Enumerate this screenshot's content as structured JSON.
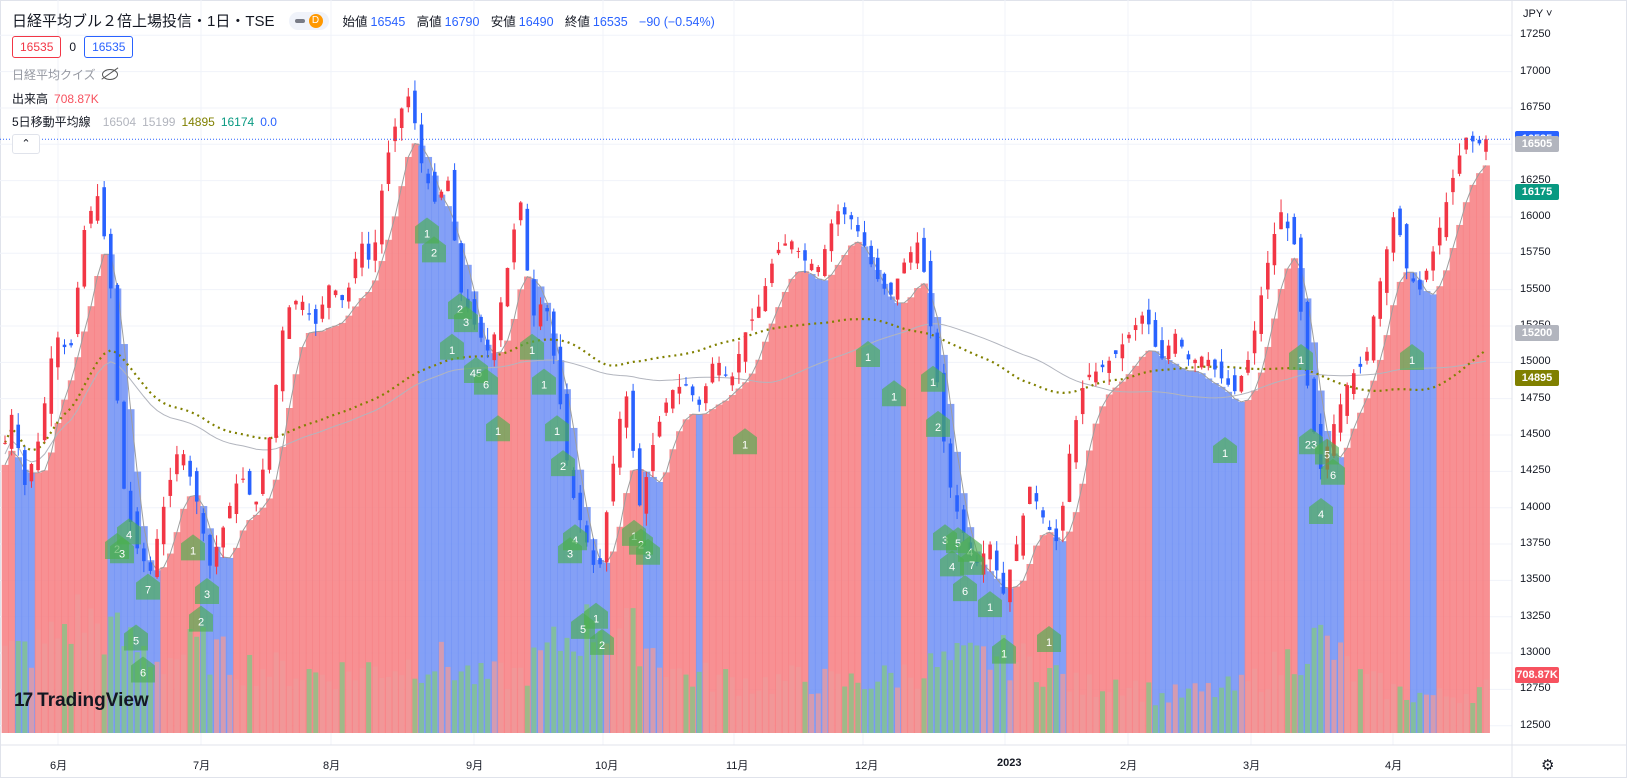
{
  "header": {
    "title": "日経平均ブル２倍上場投信・1日・TSE",
    "pill_letter": "D",
    "open_label": "始値",
    "open": "16545",
    "high_label": "高値",
    "high": "16790",
    "low_label": "安値",
    "low": "16490",
    "close_label": "終値",
    "close": "16535",
    "change": "−90 (−0.54%)"
  },
  "boxes": {
    "sell": "16535",
    "spread": "0",
    "buy": "16535"
  },
  "indicators": {
    "quiz": "日経平均クイズ",
    "volume_label": "出来高",
    "volume_value": "708.87K",
    "ma_label": "5日移動平均線",
    "ma_values": [
      {
        "text": "16504",
        "color": "#b2b5be"
      },
      {
        "text": "15199",
        "color": "#b2b5be"
      },
      {
        "text": "14895",
        "color": "#808000"
      },
      {
        "text": "16174",
        "color": "#089981"
      },
      {
        "text": "0.0",
        "color": "#2962ff"
      }
    ]
  },
  "currency": "JPY",
  "price_axis": [
    "17250",
    "17000",
    "16750",
    "16500",
    "16250",
    "16000",
    "15750",
    "15500",
    "15250",
    "15000",
    "14750",
    "14500",
    "14250",
    "14000",
    "13750",
    "13500",
    "13250",
    "13000",
    "12750",
    "12500"
  ],
  "price_tags": [
    {
      "text": "16535",
      "price": 16535,
      "color": "#2962ff"
    },
    {
      "text": "16505",
      "price": 16505,
      "color": "#b2b5be"
    },
    {
      "text": "16175",
      "price": 16175,
      "color": "#089981"
    },
    {
      "text": "15200",
      "price": 15200,
      "color": "#b2b5be"
    },
    {
      "text": "14895",
      "price": 14895,
      "color": "#808000"
    },
    {
      "text": "708.87K",
      "price": 12850,
      "color": "#f7525f"
    }
  ],
  "time_axis": [
    {
      "label": "6月",
      "x": 58,
      "year": false
    },
    {
      "label": "7月",
      "x": 201,
      "year": false
    },
    {
      "label": "8月",
      "x": 331,
      "year": false
    },
    {
      "label": "9月",
      "x": 474,
      "year": false
    },
    {
      "label": "10月",
      "x": 603,
      "year": false
    },
    {
      "label": "11月",
      "x": 734,
      "year": false
    },
    {
      "label": "12月",
      "x": 863,
      "year": false
    },
    {
      "label": "2023",
      "x": 1005,
      "year": true
    },
    {
      "label": "2月",
      "x": 1128,
      "year": false
    },
    {
      "label": "3月",
      "x": 1251,
      "year": false
    },
    {
      "label": "4月",
      "x": 1393,
      "year": false
    }
  ],
  "logo": "TradingView",
  "colors": {
    "up": "#f23645",
    "down": "#2962ff",
    "fill_up": "#f77c80",
    "fill_down": "#6f8ff5",
    "ma_long": "#808000",
    "marker": "#4caf50"
  },
  "chart_data": {
    "type": "candlestick",
    "ylim": [
      12450,
      17300
    ],
    "price_anchors": [
      [
        0,
        14300
      ],
      [
        12,
        14650
      ],
      [
        25,
        14150
      ],
      [
        40,
        14500
      ],
      [
        55,
        15200
      ],
      [
        70,
        15050
      ],
      [
        85,
        15950
      ],
      [
        98,
        16150
      ],
      [
        110,
        15600
      ],
      [
        122,
        14200
      ],
      [
        135,
        13750
      ],
      [
        150,
        13550
      ],
      [
        165,
        14050
      ],
      [
        180,
        14450
      ],
      [
        195,
        14100
      ],
      [
        210,
        13600
      ],
      [
        225,
        13900
      ],
      [
        240,
        14250
      ],
      [
        255,
        14000
      ],
      [
        270,
        14500
      ],
      [
        285,
        15350
      ],
      [
        300,
        15450
      ],
      [
        315,
        15250
      ],
      [
        330,
        15550
      ],
      [
        345,
        15400
      ],
      [
        360,
        15850
      ],
      [
        372,
        15650
      ],
      [
        385,
        16350
      ],
      [
        398,
        16700
      ],
      [
        410,
        16850
      ],
      [
        422,
        16350
      ],
      [
        435,
        16100
      ],
      [
        448,
        16250
      ],
      [
        460,
        15500
      ],
      [
        475,
        15250
      ],
      [
        490,
        15050
      ],
      [
        505,
        15550
      ],
      [
        520,
        16150
      ],
      [
        532,
        15300
      ],
      [
        545,
        15450
      ],
      [
        558,
        14850
      ],
      [
        570,
        14150
      ],
      [
        583,
        13850
      ],
      [
        598,
        13500
      ],
      [
        610,
        14150
      ],
      [
        625,
        14850
      ],
      [
        640,
        14000
      ],
      [
        655,
        14500
      ],
      [
        670,
        14800
      ],
      [
        685,
        14850
      ],
      [
        700,
        14700
      ],
      [
        715,
        15050
      ],
      [
        730,
        14850
      ],
      [
        745,
        15200
      ],
      [
        760,
        15400
      ],
      [
        775,
        15750
      ],
      [
        790,
        15850
      ],
      [
        805,
        15700
      ],
      [
        820,
        15650
      ],
      [
        835,
        16050
      ],
      [
        850,
        16000
      ],
      [
        862,
        15850
      ],
      [
        875,
        15600
      ],
      [
        890,
        15450
      ],
      [
        905,
        15700
      ],
      [
        920,
        15850
      ],
      [
        935,
        15000
      ],
      [
        948,
        14200
      ],
      [
        960,
        13900
      ],
      [
        975,
        13600
      ],
      [
        990,
        13750
      ],
      [
        1003,
        13400
      ],
      [
        1015,
        13700
      ],
      [
        1030,
        14150
      ],
      [
        1045,
        13900
      ],
      [
        1058,
        13750
      ],
      [
        1070,
        14400
      ],
      [
        1085,
        14900
      ],
      [
        1100,
        14950
      ],
      [
        1115,
        15050
      ],
      [
        1130,
        15200
      ],
      [
        1145,
        15350
      ],
      [
        1160,
        15000
      ],
      [
        1175,
        15200
      ],
      [
        1190,
        15000
      ],
      [
        1205,
        15050
      ],
      [
        1220,
        14900
      ],
      [
        1235,
        14800
      ],
      [
        1250,
        15050
      ],
      [
        1265,
        15600
      ],
      [
        1280,
        16050
      ],
      [
        1295,
        15800
      ],
      [
        1308,
        14800
      ],
      [
        1320,
        14250
      ],
      [
        1335,
        14600
      ],
      [
        1350,
        14900
      ],
      [
        1365,
        15000
      ],
      [
        1380,
        15550
      ],
      [
        1395,
        16050
      ],
      [
        1408,
        15600
      ],
      [
        1420,
        15500
      ],
      [
        1435,
        15800
      ],
      [
        1450,
        16200
      ],
      [
        1465,
        16550
      ],
      [
        1478,
        16500
      ],
      [
        1486,
        16535
      ]
    ],
    "volume_anchors": [
      [
        0,
        0.85
      ],
      [
        40,
        0.95
      ],
      [
        80,
        1.3
      ],
      [
        120,
        1.05
      ],
      [
        160,
        0.8
      ],
      [
        200,
        0.95
      ],
      [
        240,
        0.75
      ],
      [
        280,
        0.7
      ],
      [
        320,
        0.65
      ],
      [
        360,
        0.7
      ],
      [
        400,
        0.75
      ],
      [
        440,
        0.8
      ],
      [
        480,
        0.6
      ],
      [
        520,
        0.65
      ],
      [
        560,
        1.0
      ],
      [
        600,
        1.25
      ],
      [
        640,
        1.05
      ],
      [
        680,
        0.65
      ],
      [
        720,
        0.6
      ],
      [
        760,
        0.55
      ],
      [
        800,
        0.6
      ],
      [
        840,
        0.55
      ],
      [
        880,
        0.6
      ],
      [
        920,
        0.7
      ],
      [
        960,
        0.8
      ],
      [
        1000,
        0.85
      ],
      [
        1040,
        0.75
      ],
      [
        1080,
        0.5
      ],
      [
        1120,
        0.6
      ],
      [
        1160,
        0.4
      ],
      [
        1200,
        0.45
      ],
      [
        1240,
        0.5
      ],
      [
        1280,
        0.75
      ],
      [
        1320,
        1.05
      ],
      [
        1360,
        0.6
      ],
      [
        1400,
        0.45
      ],
      [
        1440,
        0.4
      ],
      [
        1486,
        0.5
      ]
    ],
    "markers": [
      {
        "label": "1",
        "x": 427,
        "price": 15900
      },
      {
        "label": "2",
        "x": 434,
        "price": 15770
      },
      {
        "label": "2",
        "x": 460,
        "price": 15380
      },
      {
        "label": "3",
        "x": 466,
        "price": 15290
      },
      {
        "label": "1",
        "x": 452,
        "price": 15100
      },
      {
        "label": "1",
        "x": 532,
        "price": 15100
      },
      {
        "label": "45",
        "x": 476,
        "price": 14940
      },
      {
        "label": "6",
        "x": 486,
        "price": 14860
      },
      {
        "label": "1",
        "x": 544,
        "price": 14860
      },
      {
        "label": "1",
        "x": 498,
        "price": 14540
      },
      {
        "label": "1",
        "x": 557,
        "price": 14540
      },
      {
        "label": "2",
        "x": 563,
        "price": 14300
      },
      {
        "label": "4",
        "x": 575,
        "price": 13790
      },
      {
        "label": "3",
        "x": 570,
        "price": 13700
      },
      {
        "label": "1",
        "x": 634,
        "price": 13820
      },
      {
        "label": "2",
        "x": 641,
        "price": 13760
      },
      {
        "label": "3",
        "x": 648,
        "price": 13690
      },
      {
        "label": "1",
        "x": 596,
        "price": 13250
      },
      {
        "label": "5",
        "x": 583,
        "price": 13180
      },
      {
        "label": "2",
        "x": 602,
        "price": 13070
      },
      {
        "label": "2",
        "x": 117,
        "price": 13730
      },
      {
        "label": "4",
        "x": 129,
        "price": 13830
      },
      {
        "label": "3",
        "x": 122,
        "price": 13700
      },
      {
        "label": "1",
        "x": 193,
        "price": 13720
      },
      {
        "label": "7",
        "x": 148,
        "price": 13450
      },
      {
        "label": "3",
        "x": 207,
        "price": 13420
      },
      {
        "label": "2",
        "x": 201,
        "price": 13230
      },
      {
        "label": "5",
        "x": 136,
        "price": 13100
      },
      {
        "label": "6",
        "x": 143,
        "price": 12880
      },
      {
        "label": "1",
        "x": 745,
        "price": 14450
      },
      {
        "label": "1",
        "x": 868,
        "price": 15050
      },
      {
        "label": "1",
        "x": 933,
        "price": 14880
      },
      {
        "label": "1",
        "x": 894,
        "price": 14780
      },
      {
        "label": "2",
        "x": 938,
        "price": 14570
      },
      {
        "label": "3",
        "x": 945,
        "price": 13790
      },
      {
        "label": "5",
        "x": 958,
        "price": 13770
      },
      {
        "label": "4",
        "x": 970,
        "price": 13710
      },
      {
        "label": "4",
        "x": 952,
        "price": 13610
      },
      {
        "label": "7",
        "x": 972,
        "price": 13620
      },
      {
        "label": "6",
        "x": 965,
        "price": 13440
      },
      {
        "label": "1",
        "x": 990,
        "price": 13330
      },
      {
        "label": "1",
        "x": 1004,
        "price": 13010
      },
      {
        "label": "1",
        "x": 1049,
        "price": 13090
      },
      {
        "label": "1",
        "x": 1301,
        "price": 15030
      },
      {
        "label": "1",
        "x": 1412,
        "price": 15030
      },
      {
        "label": "1",
        "x": 1225,
        "price": 14390
      },
      {
        "label": "23",
        "x": 1311,
        "price": 14450
      },
      {
        "label": "5",
        "x": 1327,
        "price": 14380
      },
      {
        "label": "6",
        "x": 1333,
        "price": 14240
      },
      {
        "label": "4",
        "x": 1321,
        "price": 13970
      }
    ]
  }
}
